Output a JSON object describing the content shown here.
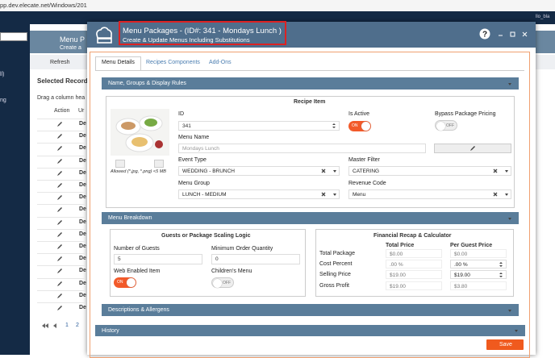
{
  "browser": {
    "url": "pp.dev.elecate.net/Windows/201"
  },
  "background": {
    "user": "llo_bla",
    "title": "Menu P",
    "subtitle": "Create a",
    "refresh": "Refresh",
    "selected_records": "Selected Records",
    "drag_hint": "Drag a column hea",
    "col_action": "Action",
    "col_name": "Ur",
    "sidebar": [
      "ll)",
      "ng"
    ],
    "rows": [
      "De",
      "De",
      "De",
      "De",
      "De",
      "De",
      "De",
      "De",
      "De",
      "De",
      "De",
      "De",
      "De",
      "De",
      "De",
      "De"
    ],
    "pages": [
      "1",
      "2"
    ]
  },
  "dialog": {
    "title": "Menu Packages - (ID#: 341 - Mondays Lunch )",
    "subtitle": "Create & Update Menus Including Substitutions",
    "tabs": [
      "Menu Details",
      "Recipes Components",
      "Add-Ons"
    ],
    "section1": {
      "title": "Name, Groups & Display Rules",
      "box_title": "Recipe Item",
      "allowed": "Allowed (*.jpg, *.png) <5 MB",
      "id_label": "ID",
      "id_value": "341",
      "is_active_label": "Is Active",
      "is_active_state": "ON",
      "bypass_label": "Bypass Package Pricing",
      "bypass_state": "OFF",
      "menu_name_label": "Menu Name",
      "menu_name_value": "Mondays Lunch",
      "event_type_label": "Event Type",
      "event_type_value": "WEDDING - BRUNCH",
      "master_filter_label": "Master Filter",
      "master_filter_value": "CATERING",
      "menu_group_label": "Menu Group",
      "menu_group_value": "LUNCH - MEDIUM",
      "revenue_code_label": "Revenue Code",
      "revenue_code_value": "Menu"
    },
    "section2": {
      "title": "Menu Breakdown",
      "scaling_title": "Guests or Package Scaling Logic",
      "guests_label": "Number of Guests",
      "guests_value": "5",
      "min_order_label": "Minimum Order Quantity",
      "min_order_value": "0",
      "web_label": "Web Enabled Item",
      "web_state": "ON",
      "children_label": "Children's Menu",
      "children_state": "OFF",
      "recap_title": "Financial Recap & Calculator",
      "col_total": "Total Price",
      "col_guest": "Per Guest Price",
      "rows": [
        {
          "label": "Total Package",
          "total": "$0.00",
          "guest": "$0.00"
        },
        {
          "label": "Cost Percent",
          "total": ".00 %",
          "guest": ".00 %"
        },
        {
          "label": "Selling Price",
          "total": "$19.00",
          "guest": "$19.00"
        },
        {
          "label": "Gross Profit",
          "total": "$19.00",
          "guest": "$3.80"
        }
      ]
    },
    "section3": {
      "title": "Descriptions & Allergens"
    },
    "history": "History",
    "save": "Save"
  }
}
